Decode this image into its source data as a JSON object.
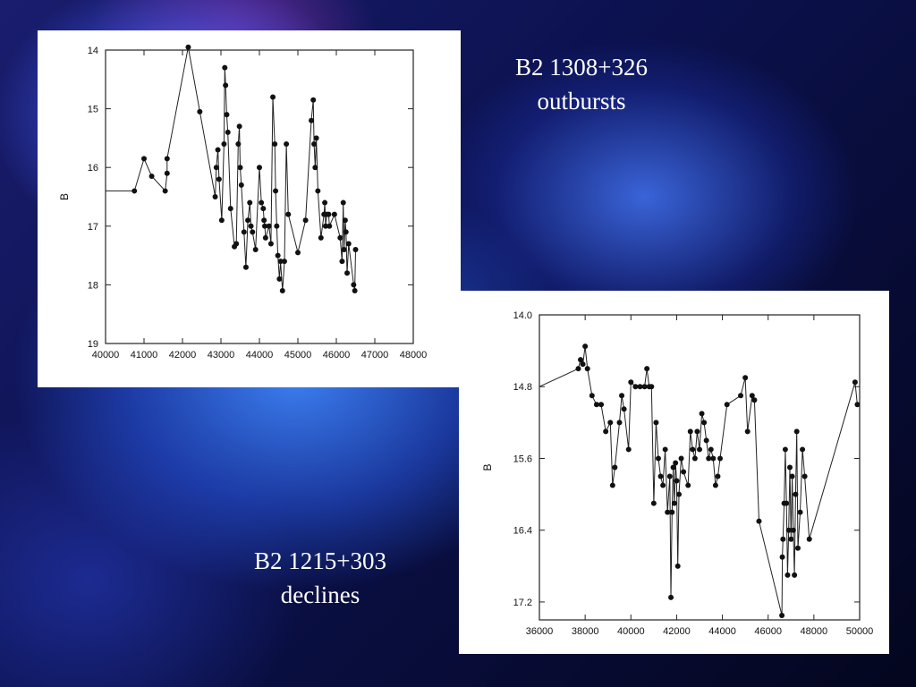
{
  "captions": [
    {
      "line1": "B2 1308+326",
      "line2": "outbursts"
    },
    {
      "line1": "B2 1215+303",
      "line2": "declines"
    }
  ],
  "chart_data": [
    {
      "type": "line",
      "title": "",
      "xlabel": "",
      "ylabel": "B",
      "xlim": [
        40000,
        48000
      ],
      "ylim": [
        19,
        14
      ],
      "y_inverted": true,
      "x_ticks": [
        "40000",
        "41000",
        "42000",
        "43000",
        "44000",
        "45000",
        "46000",
        "47000",
        "48000"
      ],
      "y_ticks": [
        "14",
        "15",
        "16",
        "17",
        "18",
        "19"
      ],
      "marker": "filled-circle",
      "series": [
        {
          "x": [
            40000,
            40750,
            41000,
            41200,
            41550,
            41600,
            41600,
            42150,
            42450,
            42850,
            42880,
            42920,
            42950,
            43020,
            43080,
            43100,
            43120,
            43150,
            43180,
            43250,
            43350,
            43400,
            43450,
            43480,
            43500,
            43530,
            43600,
            43650,
            43700,
            43750,
            43780,
            43820,
            43900,
            44000,
            44050,
            44100,
            44120,
            44140,
            44160,
            44250,
            44300,
            44350,
            44400,
            44420,
            44450,
            44480,
            44520,
            44550,
            44600,
            44650,
            44700,
            44750,
            45000,
            45200,
            45350,
            45400,
            45420,
            45450,
            45480,
            45520,
            45600,
            45680,
            45700,
            45720,
            45750,
            45800,
            45820,
            45950,
            46100,
            46150,
            46180,
            46200,
            46230,
            46250,
            46280,
            46320,
            46450,
            46480,
            46500
          ],
          "y": [
            16.4,
            16.4,
            15.85,
            16.15,
            16.4,
            16.1,
            15.85,
            13.95,
            15.05,
            16.5,
            16.0,
            15.7,
            16.2,
            16.9,
            15.6,
            14.3,
            14.6,
            15.1,
            15.4,
            16.7,
            17.35,
            17.3,
            15.6,
            15.3,
            16.0,
            16.3,
            17.1,
            17.7,
            16.9,
            16.6,
            17.0,
            17.1,
            17.4,
            16.0,
            16.6,
            16.7,
            16.9,
            17.0,
            17.2,
            17.0,
            17.3,
            14.8,
            15.6,
            16.4,
            17.0,
            17.5,
            17.9,
            17.6,
            18.1,
            17.6,
            15.6,
            16.8,
            17.45,
            16.9,
            15.2,
            14.85,
            15.6,
            16.0,
            15.5,
            16.4,
            17.2,
            16.8,
            16.6,
            17.0,
            16.8,
            16.8,
            17.0,
            16.8,
            17.2,
            17.6,
            16.6,
            17.4,
            16.9,
            17.1,
            17.8,
            17.3,
            18.0,
            18.1,
            17.4
          ]
        }
      ]
    },
    {
      "type": "line",
      "title": "",
      "xlabel": "",
      "ylabel": "B",
      "xlim": [
        36000,
        50000
      ],
      "ylim": [
        17.4,
        14.0
      ],
      "y_inverted": true,
      "x_ticks": [
        "36000",
        "38000",
        "40000",
        "42000",
        "44000",
        "46000",
        "48000",
        "50000"
      ],
      "y_ticks": [
        "14.0",
        "14.8",
        "15.6",
        "16.4",
        "17.2"
      ],
      "marker": "filled-circle",
      "series": [
        {
          "x": [
            36000,
            37700,
            37800,
            37900,
            38000,
            38100,
            38300,
            38500,
            38700,
            38900,
            39100,
            39200,
            39300,
            39500,
            39600,
            39700,
            39900,
            40000,
            40200,
            40400,
            40600,
            40700,
            40800,
            40900,
            41000,
            41100,
            41200,
            41300,
            41400,
            41500,
            41600,
            41700,
            41750,
            41800,
            41850,
            41900,
            41950,
            42000,
            42050,
            42100,
            42200,
            42300,
            42500,
            42600,
            42700,
            42800,
            42900,
            43000,
            43100,
            43200,
            43300,
            43400,
            43500,
            43600,
            43700,
            43800,
            43900,
            44200,
            44800,
            45000,
            45100,
            45300,
            45400,
            45600,
            46600,
            46620,
            46650,
            46700,
            46750,
            46800,
            46850,
            46900,
            46950,
            47000,
            47050,
            47100,
            47150,
            47200,
            47250,
            47300,
            47400,
            47500,
            47600,
            47800,
            49800,
            49900
          ],
          "y": [
            14.8,
            14.6,
            14.5,
            14.55,
            14.35,
            14.6,
            14.9,
            15.0,
            15.0,
            15.3,
            15.2,
            15.9,
            15.7,
            15.2,
            14.9,
            15.05,
            15.5,
            14.75,
            14.8,
            14.8,
            14.8,
            14.6,
            14.8,
            14.8,
            16.1,
            15.2,
            15.6,
            15.8,
            15.9,
            15.5,
            16.2,
            15.8,
            17.15,
            16.2,
            15.7,
            16.1,
            15.65,
            15.85,
            16.8,
            16.0,
            15.6,
            15.75,
            15.9,
            15.3,
            15.5,
            15.6,
            15.3,
            15.5,
            15.1,
            15.2,
            15.4,
            15.6,
            15.5,
            15.6,
            15.9,
            15.8,
            15.6,
            15.0,
            14.9,
            14.7,
            15.3,
            14.9,
            14.95,
            16.3,
            17.35,
            16.7,
            16.5,
            16.1,
            15.5,
            16.1,
            16.9,
            16.4,
            15.7,
            16.5,
            15.8,
            16.4,
            16.9,
            16.0,
            15.3,
            16.6,
            16.2,
            15.5,
            15.8,
            16.5,
            14.75,
            15.0
          ]
        }
      ]
    }
  ]
}
